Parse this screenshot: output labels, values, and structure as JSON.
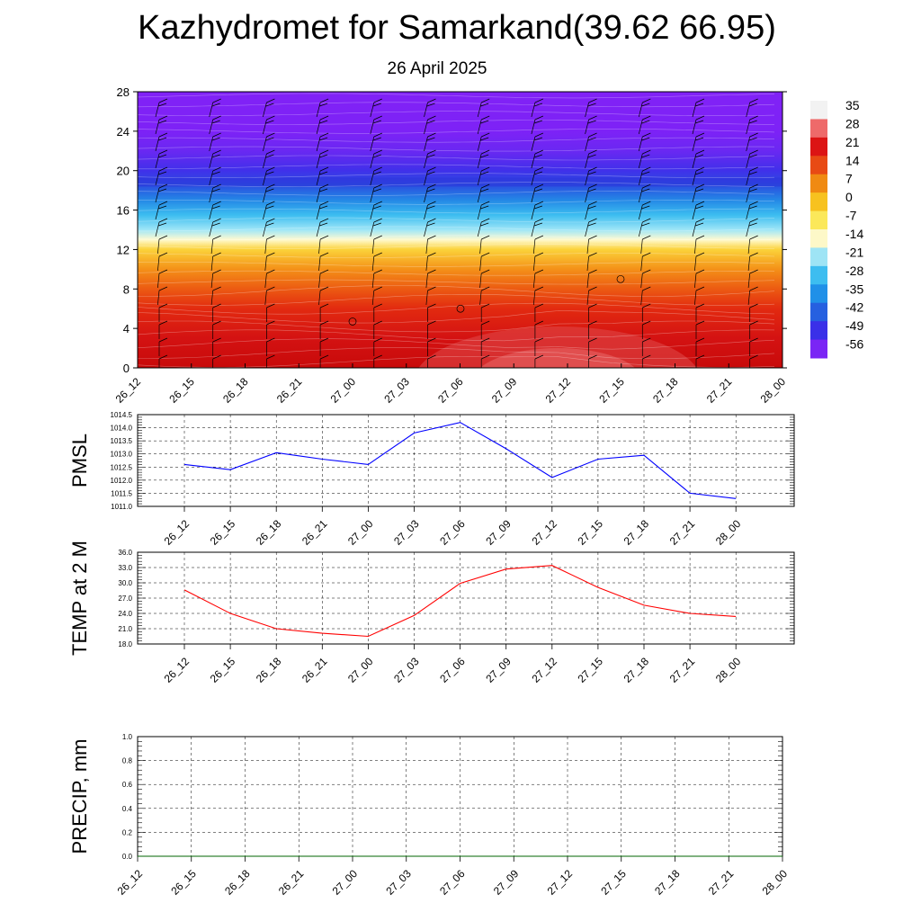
{
  "page": {
    "title": "Kazhydromet for Samarkand(39.62 66.95)",
    "date": "26 April 2025"
  },
  "chart_data": [
    {
      "type": "heatmap",
      "yticks": [
        "0",
        "4",
        "8",
        "12",
        "16",
        "20",
        "24",
        "28"
      ],
      "ylim": [
        0,
        28
      ],
      "xticks": [
        "26_12",
        "26_15",
        "26_18",
        "26_21",
        "27_00",
        "27_03",
        "27_06",
        "27_09",
        "27_12",
        "27_15",
        "27_18",
        "27_21",
        "28_00"
      ],
      "colorbar": {
        "labels": [
          "35",
          "28",
          "21",
          "14",
          "7",
          "0",
          "-7",
          "-14",
          "-21",
          "-28",
          "-35",
          "-42",
          "-49",
          "-56"
        ],
        "colors": [
          "#f2f2f2",
          "#ee6a6a",
          "#dc1414",
          "#e84a14",
          "#f08a12",
          "#f7c21f",
          "#fbe85a",
          "#fdf8c8",
          "#9ee4f5",
          "#3dbdf0",
          "#2090e8",
          "#2660e0",
          "#3a30e8",
          "#7a25f5"
        ]
      },
      "grid": false
    },
    {
      "type": "line",
      "ylabel": "PMSL",
      "ylim": [
        1011.0,
        1014.5
      ],
      "yticks": [
        "1011.0",
        "1011.5",
        "1012.0",
        "1012.5",
        "1013.0",
        "1013.5",
        "1014.0",
        "1014.5"
      ],
      "categories": [
        "26_12",
        "26_15",
        "26_18",
        "26_21",
        "27_00",
        "27_03",
        "27_06",
        "27_09",
        "27_12",
        "27_15",
        "27_18",
        "27_21",
        "28_00"
      ],
      "values": [
        1012.6,
        1012.4,
        1013.05,
        1012.8,
        1012.6,
        1013.8,
        1014.2,
        1013.2,
        1012.1,
        1012.8,
        1012.95,
        1011.5,
        1011.3
      ],
      "color": "#0000ff",
      "grid": true
    },
    {
      "type": "line",
      "ylabel": "TEMP at 2 M",
      "ylim": [
        18.0,
        36.0
      ],
      "yticks": [
        "18.0",
        "21.0",
        "24.0",
        "27.0",
        "30.0",
        "33.0",
        "36.0"
      ],
      "categories": [
        "26_12",
        "26_15",
        "26_18",
        "26_21",
        "27_00",
        "27_03",
        "27_06",
        "27_09",
        "27_12",
        "27_15",
        "27_18",
        "27_21",
        "28_00"
      ],
      "values": [
        28.6,
        24.0,
        21.0,
        20.1,
        19.5,
        23.6,
        29.9,
        32.7,
        33.4,
        29.1,
        25.6,
        24.0,
        23.4
      ],
      "color": "#ff0000",
      "grid": true
    },
    {
      "type": "line",
      "ylabel": "PRECIP, mm",
      "ylim": [
        0.0,
        1.0
      ],
      "yticks": [
        "0.0",
        "0.2",
        "0.4",
        "0.6",
        "0.8",
        "1.0"
      ],
      "categories": [
        "26_12",
        "26_15",
        "26_18",
        "26_21",
        "27_00",
        "27_03",
        "27_06",
        "27_09",
        "27_12",
        "27_15",
        "27_18",
        "27_21",
        "28_00"
      ],
      "values": [
        0,
        0,
        0,
        0,
        0,
        0,
        0,
        0,
        0,
        0,
        0,
        0,
        0
      ],
      "color": "#006400",
      "grid": true
    }
  ]
}
